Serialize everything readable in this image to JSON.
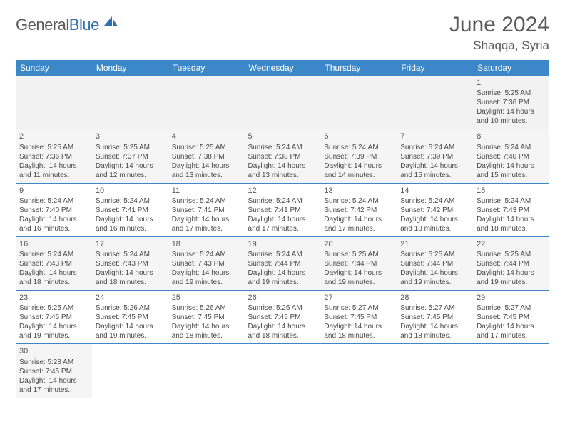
{
  "brand": {
    "part1": "General",
    "part2": "Blue"
  },
  "title": "June 2024",
  "location": "Shaqqa, Syria",
  "colors": {
    "header_bg": "#3b87c8",
    "header_text": "#ffffff",
    "grid_line": "#3b87c8",
    "alt_row_bg": "#f5f5f5",
    "text": "#4a4a4a",
    "brand_gray": "#5a5a5a",
    "brand_blue": "#2f6fb0"
  },
  "weekdays": [
    "Sunday",
    "Monday",
    "Tuesday",
    "Wednesday",
    "Thursday",
    "Friday",
    "Saturday"
  ],
  "first_weekday_index": 6,
  "days": [
    {
      "n": 1,
      "sunrise": "5:25 AM",
      "sunset": "7:36 PM",
      "daylight": "14 hours and 10 minutes."
    },
    {
      "n": 2,
      "sunrise": "5:25 AM",
      "sunset": "7:36 PM",
      "daylight": "14 hours and 11 minutes."
    },
    {
      "n": 3,
      "sunrise": "5:25 AM",
      "sunset": "7:37 PM",
      "daylight": "14 hours and 12 minutes."
    },
    {
      "n": 4,
      "sunrise": "5:25 AM",
      "sunset": "7:38 PM",
      "daylight": "14 hours and 13 minutes."
    },
    {
      "n": 5,
      "sunrise": "5:24 AM",
      "sunset": "7:38 PM",
      "daylight": "14 hours and 13 minutes."
    },
    {
      "n": 6,
      "sunrise": "5:24 AM",
      "sunset": "7:39 PM",
      "daylight": "14 hours and 14 minutes."
    },
    {
      "n": 7,
      "sunrise": "5:24 AM",
      "sunset": "7:39 PM",
      "daylight": "14 hours and 15 minutes."
    },
    {
      "n": 8,
      "sunrise": "5:24 AM",
      "sunset": "7:40 PM",
      "daylight": "14 hours and 15 minutes."
    },
    {
      "n": 9,
      "sunrise": "5:24 AM",
      "sunset": "7:40 PM",
      "daylight": "14 hours and 16 minutes."
    },
    {
      "n": 10,
      "sunrise": "5:24 AM",
      "sunset": "7:41 PM",
      "daylight": "14 hours and 16 minutes."
    },
    {
      "n": 11,
      "sunrise": "5:24 AM",
      "sunset": "7:41 PM",
      "daylight": "14 hours and 17 minutes."
    },
    {
      "n": 12,
      "sunrise": "5:24 AM",
      "sunset": "7:41 PM",
      "daylight": "14 hours and 17 minutes."
    },
    {
      "n": 13,
      "sunrise": "5:24 AM",
      "sunset": "7:42 PM",
      "daylight": "14 hours and 17 minutes."
    },
    {
      "n": 14,
      "sunrise": "5:24 AM",
      "sunset": "7:42 PM",
      "daylight": "14 hours and 18 minutes."
    },
    {
      "n": 15,
      "sunrise": "5:24 AM",
      "sunset": "7:43 PM",
      "daylight": "14 hours and 18 minutes."
    },
    {
      "n": 16,
      "sunrise": "5:24 AM",
      "sunset": "7:43 PM",
      "daylight": "14 hours and 18 minutes."
    },
    {
      "n": 17,
      "sunrise": "5:24 AM",
      "sunset": "7:43 PM",
      "daylight": "14 hours and 18 minutes."
    },
    {
      "n": 18,
      "sunrise": "5:24 AM",
      "sunset": "7:43 PM",
      "daylight": "14 hours and 19 minutes."
    },
    {
      "n": 19,
      "sunrise": "5:24 AM",
      "sunset": "7:44 PM",
      "daylight": "14 hours and 19 minutes."
    },
    {
      "n": 20,
      "sunrise": "5:25 AM",
      "sunset": "7:44 PM",
      "daylight": "14 hours and 19 minutes."
    },
    {
      "n": 21,
      "sunrise": "5:25 AM",
      "sunset": "7:44 PM",
      "daylight": "14 hours and 19 minutes."
    },
    {
      "n": 22,
      "sunrise": "5:25 AM",
      "sunset": "7:44 PM",
      "daylight": "14 hours and 19 minutes."
    },
    {
      "n": 23,
      "sunrise": "5:25 AM",
      "sunset": "7:45 PM",
      "daylight": "14 hours and 19 minutes."
    },
    {
      "n": 24,
      "sunrise": "5:26 AM",
      "sunset": "7:45 PM",
      "daylight": "14 hours and 19 minutes."
    },
    {
      "n": 25,
      "sunrise": "5:26 AM",
      "sunset": "7:45 PM",
      "daylight": "14 hours and 18 minutes."
    },
    {
      "n": 26,
      "sunrise": "5:26 AM",
      "sunset": "7:45 PM",
      "daylight": "14 hours and 18 minutes."
    },
    {
      "n": 27,
      "sunrise": "5:27 AM",
      "sunset": "7:45 PM",
      "daylight": "14 hours and 18 minutes."
    },
    {
      "n": 28,
      "sunrise": "5:27 AM",
      "sunset": "7:45 PM",
      "daylight": "14 hours and 18 minutes."
    },
    {
      "n": 29,
      "sunrise": "5:27 AM",
      "sunset": "7:45 PM",
      "daylight": "14 hours and 17 minutes."
    },
    {
      "n": 30,
      "sunrise": "5:28 AM",
      "sunset": "7:45 PM",
      "daylight": "14 hours and 17 minutes."
    }
  ],
  "labels": {
    "sunrise": "Sunrise:",
    "sunset": "Sunset:",
    "daylight": "Daylight:"
  }
}
